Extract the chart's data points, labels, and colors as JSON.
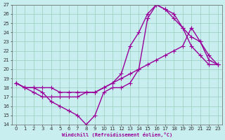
{
  "xlabel": "Windchill (Refroidissement éolien,°C)",
  "xlim": [
    -0.5,
    23.5
  ],
  "ylim": [
    14,
    27
  ],
  "xticks": [
    0,
    1,
    2,
    3,
    4,
    5,
    6,
    7,
    8,
    9,
    10,
    11,
    12,
    13,
    14,
    15,
    16,
    17,
    18,
    19,
    20,
    21,
    22,
    23
  ],
  "yticks": [
    14,
    15,
    16,
    17,
    18,
    19,
    20,
    21,
    22,
    23,
    24,
    25,
    26,
    27
  ],
  "bg_color": "#c8eef0",
  "line_color": "#990099",
  "line_width": 1.0,
  "marker": "+",
  "marker_size": 4,
  "markeredgewidth": 0.8,
  "grid_color": "#99ccbb",
  "lines": [
    {
      "x": [
        0,
        1,
        2,
        3,
        4,
        5,
        6,
        7,
        8,
        9,
        10,
        11,
        12,
        13,
        14,
        15,
        16,
        17,
        18,
        19,
        20,
        21,
        22,
        23
      ],
      "y": [
        18.5,
        18,
        18,
        17.5,
        16.5,
        16,
        15.5,
        15,
        14,
        15,
        17.5,
        18,
        18,
        18.5,
        20,
        25.5,
        27,
        26.5,
        26,
        24.5,
        22.5,
        21.5,
        20.5,
        20.5
      ]
    },
    {
      "x": [
        0,
        1,
        2,
        3,
        4,
        5,
        6,
        7,
        8,
        9,
        10,
        11,
        12,
        13,
        14,
        15,
        16,
        17,
        18,
        19,
        20,
        21,
        22,
        23
      ],
      "y": [
        18.5,
        18,
        17.5,
        17,
        17,
        17,
        17,
        17,
        17.5,
        17.5,
        18,
        18.5,
        19.5,
        22.5,
        24,
        26,
        27,
        26.5,
        25.5,
        24.5,
        23.5,
        23,
        21,
        20.5
      ]
    },
    {
      "x": [
        0,
        1,
        2,
        3,
        4,
        5,
        6,
        7,
        8,
        9,
        10,
        11,
        12,
        13,
        14,
        15,
        16,
        17,
        18,
        19,
        20,
        21,
        22,
        23
      ],
      "y": [
        18.5,
        18,
        18,
        18,
        18,
        17.5,
        17.5,
        17.5,
        17.5,
        17.5,
        18,
        18.5,
        19,
        19.5,
        20,
        20.5,
        21,
        21.5,
        22,
        22.5,
        24.5,
        23,
        21.5,
        20.5
      ]
    }
  ]
}
